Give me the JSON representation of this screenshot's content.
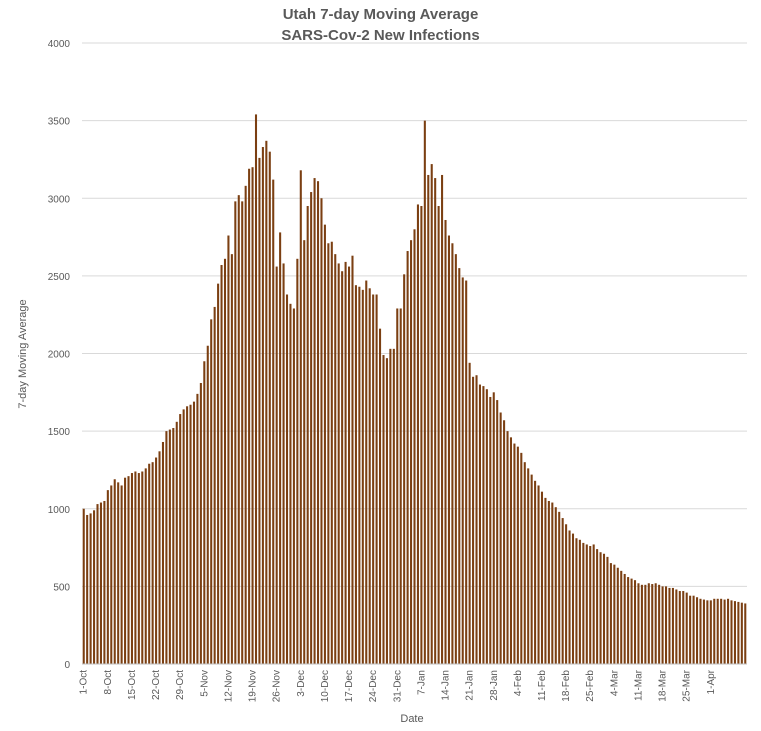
{
  "chart_data": {
    "type": "bar",
    "title": "Utah 7-day Moving Average",
    "subtitle": "SARS-Cov-2 New Infections",
    "xlabel": "Date",
    "ylabel": "7-day Moving Average",
    "ylim": [
      0,
      4000
    ],
    "yticks": [
      0,
      500,
      1000,
      1500,
      2000,
      2500,
      3000,
      3500,
      4000
    ],
    "grid": true,
    "legend": "none",
    "bar_color": "#7B3F12",
    "grid_color": "#D9D9D9",
    "x_tick_labels": [
      "1-Oct",
      "8-Oct",
      "15-Oct",
      "22-Oct",
      "29-Oct",
      "5-Nov",
      "12-Nov",
      "19-Nov",
      "26-Nov",
      "3-Dec",
      "10-Dec",
      "17-Dec",
      "24-Dec",
      "31-Dec",
      "7-Jan",
      "14-Jan",
      "21-Jan",
      "28-Jan",
      "4-Feb",
      "11-Feb",
      "18-Feb",
      "25-Feb",
      "4-Mar",
      "11-Mar",
      "18-Mar",
      "25-Mar",
      "1-Apr"
    ],
    "x_start": "2020-10-01",
    "values": [
      1000,
      960,
      970,
      990,
      1030,
      1040,
      1050,
      1120,
      1150,
      1190,
      1170,
      1150,
      1200,
      1210,
      1230,
      1240,
      1230,
      1240,
      1260,
      1290,
      1300,
      1330,
      1370,
      1430,
      1500,
      1510,
      1520,
      1560,
      1610,
      1640,
      1660,
      1670,
      1690,
      1740,
      1810,
      1950,
      2050,
      2220,
      2300,
      2450,
      2570,
      2610,
      2760,
      2640,
      2980,
      3020,
      2980,
      3080,
      3190,
      3200,
      3540,
      3260,
      3330,
      3370,
      3300,
      3120,
      2560,
      2780,
      2580,
      2380,
      2320,
      2290,
      2610,
      3180,
      2730,
      2950,
      3040,
      3130,
      3110,
      3000,
      2830,
      2710,
      2720,
      2640,
      2580,
      2530,
      2590,
      2560,
      2630,
      2440,
      2430,
      2410,
      2470,
      2420,
      2380,
      2380,
      2160,
      1990,
      1970,
      2030,
      2030,
      2290,
      2290,
      2510,
      2660,
      2730,
      2800,
      2960,
      2950,
      3500,
      3150,
      3220,
      3130,
      2950,
      3150,
      2860,
      2760,
      2710,
      2640,
      2550,
      2490,
      2470,
      1940,
      1850,
      1860,
      1800,
      1790,
      1770,
      1720,
      1750,
      1700,
      1620,
      1570,
      1500,
      1460,
      1420,
      1400,
      1360,
      1300,
      1260,
      1220,
      1180,
      1150,
      1110,
      1070,
      1050,
      1040,
      1010,
      980,
      940,
      900,
      860,
      840,
      810,
      800,
      780,
      770,
      760,
      770,
      740,
      720,
      710,
      690,
      650,
      640,
      620,
      600,
      580,
      560,
      550,
      540,
      520,
      510,
      510,
      520,
      515,
      520,
      510,
      500,
      500,
      490,
      490,
      480,
      470,
      470,
      460,
      440,
      440,
      430,
      420,
      415,
      410,
      410,
      420,
      420,
      420,
      415,
      420,
      410,
      405,
      400,
      395,
      390
    ]
  }
}
